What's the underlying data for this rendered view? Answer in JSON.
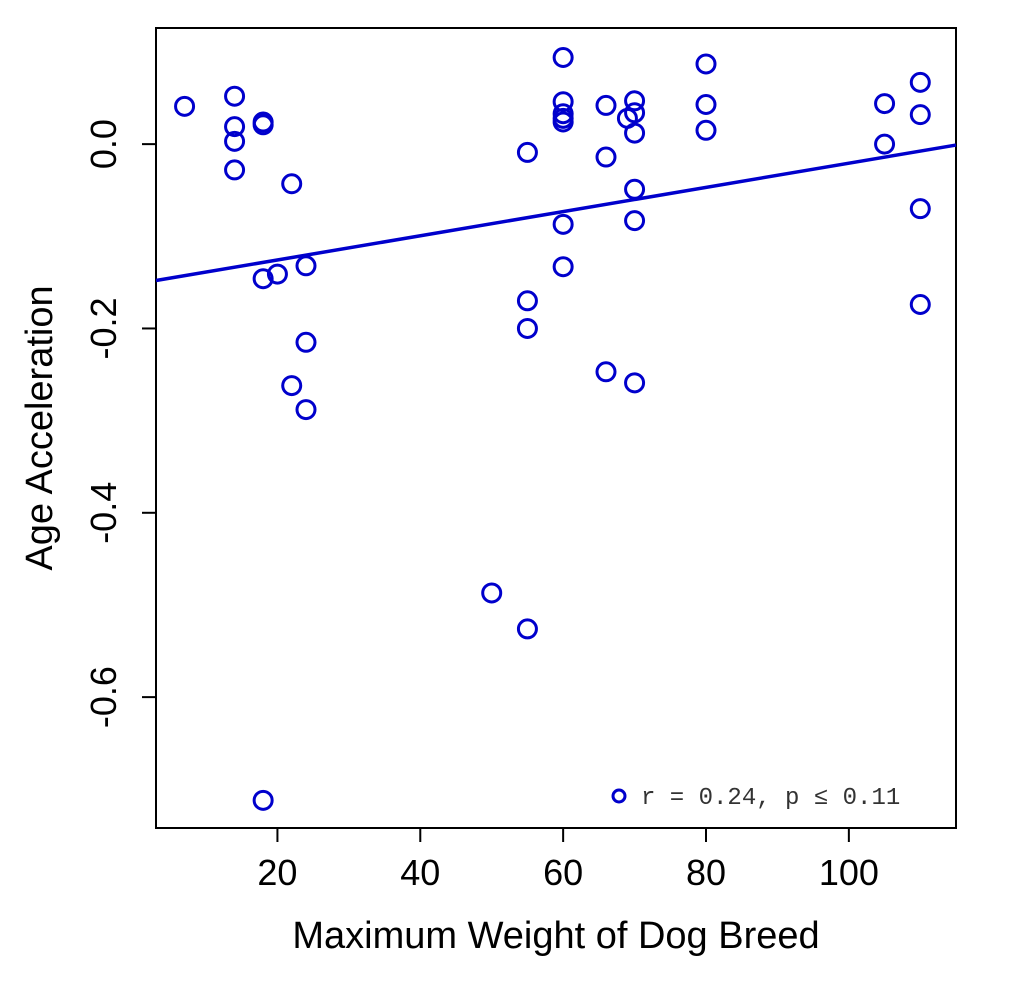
{
  "chart_data": {
    "type": "scatter",
    "title": "",
    "xlabel": "Maximum Weight of Dog Breed",
    "ylabel": "Age Acceleration",
    "xlim": [
      3,
      115
    ],
    "ylim": [
      -0.742,
      0.126
    ],
    "xticks": [
      20,
      40,
      60,
      80,
      100
    ],
    "yticks": [
      0.0,
      -0.2,
      -0.4,
      -0.6
    ],
    "xtick_labels": [
      "20",
      "40",
      "60",
      "80",
      "100"
    ],
    "ytick_labels": [
      "0.0",
      "-0.2",
      "-0.4",
      "-0.6"
    ],
    "grid": false,
    "color": "#0000cc",
    "points": [
      {
        "x": 7,
        "y": 0.041
      },
      {
        "x": 14,
        "y": 0.052
      },
      {
        "x": 14,
        "y": 0.019
      },
      {
        "x": 14,
        "y": 0.003
      },
      {
        "x": 14,
        "y": -0.028
      },
      {
        "x": 18,
        "y": 0.024
      },
      {
        "x": 18,
        "y": 0.021
      },
      {
        "x": 18,
        "y": -0.146
      },
      {
        "x": 18,
        "y": -0.712
      },
      {
        "x": 20,
        "y": -0.141
      },
      {
        "x": 22,
        "y": -0.043
      },
      {
        "x": 22,
        "y": -0.262
      },
      {
        "x": 24,
        "y": -0.132
      },
      {
        "x": 24,
        "y": -0.215
      },
      {
        "x": 24,
        "y": -0.288
      },
      {
        "x": 50,
        "y": -0.487
      },
      {
        "x": 55,
        "y": -0.009
      },
      {
        "x": 55,
        "y": -0.17
      },
      {
        "x": 55,
        "y": -0.2
      },
      {
        "x": 55,
        "y": -0.526
      },
      {
        "x": 60,
        "y": 0.094
      },
      {
        "x": 60,
        "y": 0.046
      },
      {
        "x": 60,
        "y": 0.033
      },
      {
        "x": 60,
        "y": 0.028
      },
      {
        "x": 60,
        "y": 0.024
      },
      {
        "x": 60,
        "y": -0.087
      },
      {
        "x": 60,
        "y": -0.133
      },
      {
        "x": 66,
        "y": 0.042
      },
      {
        "x": 66,
        "y": -0.014
      },
      {
        "x": 66,
        "y": -0.247
      },
      {
        "x": 69,
        "y": 0.028
      },
      {
        "x": 70,
        "y": 0.047
      },
      {
        "x": 70,
        "y": 0.034
      },
      {
        "x": 70,
        "y": 0.012
      },
      {
        "x": 70,
        "y": -0.049
      },
      {
        "x": 70,
        "y": -0.083
      },
      {
        "x": 70,
        "y": -0.259
      },
      {
        "x": 80,
        "y": 0.087
      },
      {
        "x": 80,
        "y": 0.043
      },
      {
        "x": 80,
        "y": 0.015
      },
      {
        "x": 105,
        "y": 0.044
      },
      {
        "x": 105,
        "y": 0.0
      },
      {
        "x": 110,
        "y": 0.067
      },
      {
        "x": 110,
        "y": 0.032
      },
      {
        "x": 110,
        "y": -0.07
      },
      {
        "x": 110,
        "y": -0.174
      }
    ],
    "regression_line": {
      "x": [
        3,
        115
      ],
      "y": [
        -0.148,
        -0.001
      ]
    },
    "legend": {
      "placement": "bottom-right",
      "text": "r = 0.24, p ≤ 0.11"
    }
  }
}
